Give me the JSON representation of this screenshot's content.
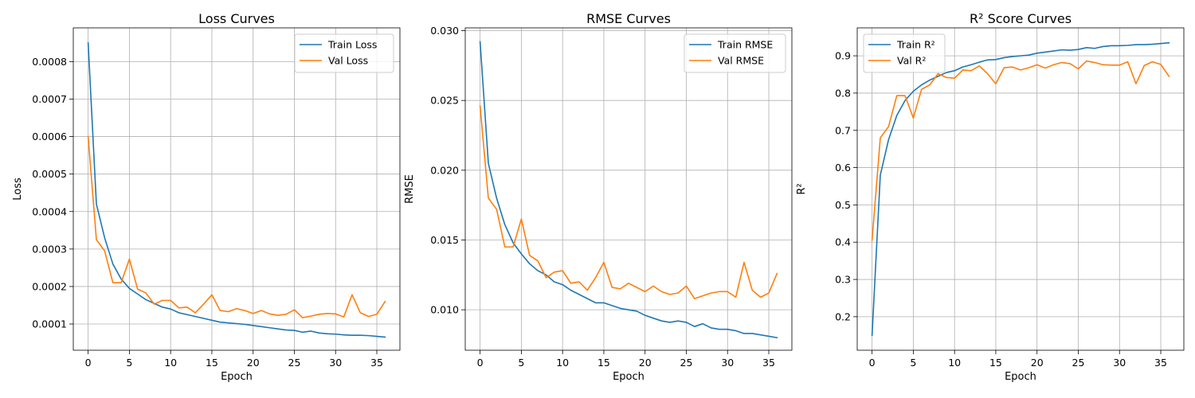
{
  "colors": {
    "train": "#1f77b4",
    "val": "#ff7f0e",
    "grid": "#b0b0b0"
  },
  "chart_data": [
    {
      "type": "line",
      "title": "Loss Curves",
      "xlabel": "Epoch",
      "ylabel": "Loss",
      "xlim": [
        -1.8,
        37.8
      ],
      "ylim": [
        3e-05,
        0.00089
      ],
      "xticks": [
        0,
        5,
        10,
        15,
        20,
        25,
        30,
        35
      ],
      "xtick_labels": [
        "0",
        "5",
        "10",
        "15",
        "20",
        "25",
        "30",
        "35"
      ],
      "yticks": [
        0.0001,
        0.0002,
        0.0003,
        0.0004,
        0.0005,
        0.0006,
        0.0007,
        0.0008
      ],
      "ytick_labels": [
        "0.0001",
        "0.0002",
        "0.0003",
        "0.0004",
        "0.0005",
        "0.0006",
        "0.0007",
        "0.0008"
      ],
      "grid": true,
      "legend_position": "top-right",
      "series": [
        {
          "name": "Train Loss",
          "color": "#1f77b4",
          "values": [
            0.00085,
            0.00042,
            0.00033,
            0.00026,
            0.00022,
            0.000195,
            0.00018,
            0.000165,
            0.000155,
            0.000145,
            0.00014,
            0.00013,
            0.000125,
            0.00012,
            0.000115,
            0.00011,
            0.000105,
            0.000103,
            0.000101,
            9.9e-05,
            9.6e-05,
            9.3e-05,
            9e-05,
            8.7e-05,
            8.4e-05,
            8.3e-05,
            7.8e-05,
            8.1e-05,
            7.6e-05,
            7.4e-05,
            7.3e-05,
            7.1e-05,
            7e-05,
            7e-05,
            6.9e-05,
            6.7e-05,
            6.5e-05
          ]
        },
        {
          "name": "Val Loss",
          "color": "#ff7f0e",
          "values": [
            0.0006,
            0.000325,
            0.000295,
            0.00021,
            0.00021,
            0.000273,
            0.000193,
            0.000183,
            0.000153,
            0.000163,
            0.000163,
            0.000143,
            0.000145,
            0.00013,
            0.000153,
            0.000178,
            0.000136,
            0.000133,
            0.000141,
            0.000136,
            0.000128,
            0.000136,
            0.000127,
            0.000123,
            0.000126,
            0.000138,
            0.000117,
            0.000121,
            0.000126,
            0.000128,
            0.000127,
            0.000119,
            0.000178,
            0.00013,
            0.00012,
            0.000126,
            0.00016
          ]
        }
      ]
    },
    {
      "type": "line",
      "title": "RMSE Curves",
      "xlabel": "Epoch",
      "ylabel": "RMSE",
      "xlim": [
        -1.8,
        37.8
      ],
      "ylim": [
        0.0071,
        0.0302
      ],
      "xticks": [
        0,
        5,
        10,
        15,
        20,
        25,
        30,
        35
      ],
      "xtick_labels": [
        "0",
        "5",
        "10",
        "15",
        "20",
        "25",
        "30",
        "35"
      ],
      "yticks": [
        0.01,
        0.015,
        0.02,
        0.025,
        0.03
      ],
      "ytick_labels": [
        "0.010",
        "0.015",
        "0.020",
        "0.025",
        "0.030"
      ],
      "grid": true,
      "legend_position": "top-right",
      "series": [
        {
          "name": "Train RMSE",
          "color": "#1f77b4",
          "values": [
            0.0292,
            0.0205,
            0.018,
            0.0161,
            0.0148,
            0.014,
            0.0133,
            0.0128,
            0.0125,
            0.012,
            0.0118,
            0.0114,
            0.0111,
            0.0108,
            0.0105,
            0.0105,
            0.0103,
            0.0101,
            0.01,
            0.0099,
            0.0096,
            0.0094,
            0.0092,
            0.0091,
            0.0092,
            0.0091,
            0.0088,
            0.009,
            0.0087,
            0.0086,
            0.0086,
            0.0085,
            0.0083,
            0.0083,
            0.0082,
            0.0081,
            0.008
          ]
        },
        {
          "name": "Val RMSE",
          "color": "#ff7f0e",
          "values": [
            0.0246,
            0.018,
            0.0172,
            0.0145,
            0.0145,
            0.0165,
            0.0139,
            0.0135,
            0.0123,
            0.0127,
            0.0128,
            0.0119,
            0.012,
            0.0114,
            0.0123,
            0.0134,
            0.0116,
            0.0115,
            0.0119,
            0.0116,
            0.0113,
            0.0117,
            0.0113,
            0.0111,
            0.0112,
            0.0117,
            0.0108,
            0.011,
            0.0112,
            0.0113,
            0.0113,
            0.0109,
            0.0134,
            0.0114,
            0.0109,
            0.0112,
            0.0126
          ]
        }
      ]
    },
    {
      "type": "line",
      "title": "R² Score Curves",
      "xlabel": "Epoch",
      "ylabel": "R²",
      "xlim": [
        -1.8,
        37.8
      ],
      "ylim": [
        0.11,
        0.975
      ],
      "xticks": [
        0,
        5,
        10,
        15,
        20,
        25,
        30,
        35
      ],
      "xtick_labels": [
        "0",
        "5",
        "10",
        "15",
        "20",
        "25",
        "30",
        "35"
      ],
      "yticks": [
        0.2,
        0.3,
        0.4,
        0.5,
        0.6,
        0.7,
        0.8,
        0.9
      ],
      "ytick_labels": [
        "0.2",
        "0.3",
        "0.4",
        "0.5",
        "0.6",
        "0.7",
        "0.8",
        "0.9"
      ],
      "grid": true,
      "legend_position": "top-left",
      "series": [
        {
          "name": "Train R²",
          "color": "#1f77b4",
          "values": [
            0.15,
            0.58,
            0.675,
            0.74,
            0.78,
            0.805,
            0.822,
            0.835,
            0.845,
            0.855,
            0.86,
            0.87,
            0.876,
            0.883,
            0.889,
            0.89,
            0.895,
            0.898,
            0.9,
            0.902,
            0.907,
            0.91,
            0.913,
            0.916,
            0.915,
            0.917,
            0.922,
            0.92,
            0.925,
            0.927,
            0.927,
            0.928,
            0.93,
            0.93,
            0.931,
            0.933,
            0.935
          ]
        },
        {
          "name": "Val R²",
          "color": "#ff7f0e",
          "values": [
            0.405,
            0.68,
            0.71,
            0.793,
            0.793,
            0.733,
            0.81,
            0.822,
            0.852,
            0.842,
            0.84,
            0.862,
            0.86,
            0.873,
            0.852,
            0.825,
            0.868,
            0.87,
            0.862,
            0.868,
            0.876,
            0.867,
            0.876,
            0.882,
            0.879,
            0.865,
            0.886,
            0.882,
            0.876,
            0.875,
            0.875,
            0.884,
            0.825,
            0.874,
            0.884,
            0.877,
            0.845
          ]
        }
      ]
    }
  ]
}
